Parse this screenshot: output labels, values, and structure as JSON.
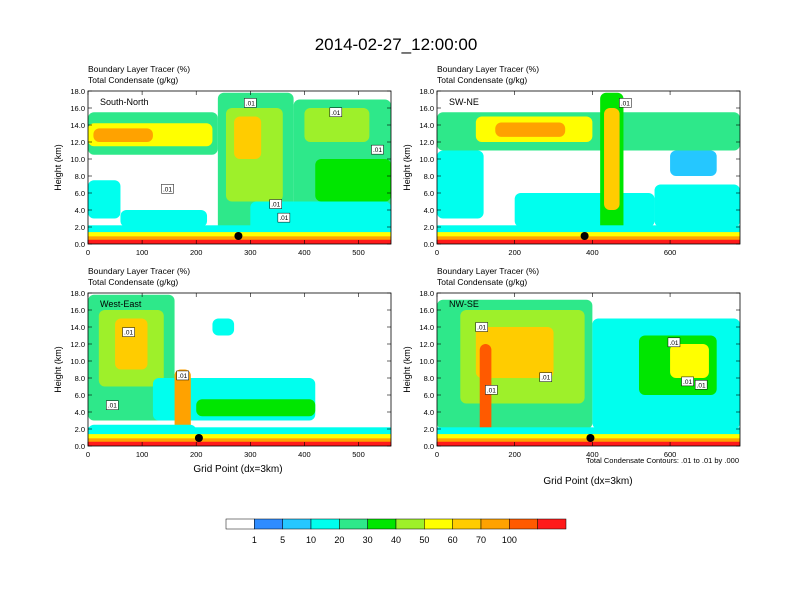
{
  "figure": {
    "title": "2014-02-27_12:00:00",
    "x_axis_label": "Grid Point (dx=3km)",
    "y_axis_label": "Height (km)",
    "contour_note": "Total Condensate Contours: .01 to .01 by .000"
  },
  "colorbar": {
    "levels": [
      "1",
      "5",
      "10",
      "20",
      "30",
      "40",
      "50",
      "60",
      "70",
      "100"
    ],
    "colors": [
      "#ffffff",
      "#2f8cff",
      "#25c7ff",
      "#00ffee",
      "#2ee88a",
      "#00e600",
      "#9ef02a",
      "#ffff00",
      "#ffcc00",
      "#ffa200",
      "#ff5a00",
      "#ff1a1a"
    ]
  },
  "chart_data": [
    {
      "type": "heatmap",
      "name": "South-North",
      "label": "South-North",
      "subtitle_1": "Boundary Layer Tracer    (%)",
      "subtitle_2": "Total Condensate    (g/kg)",
      "xlim": [
        0,
        560
      ],
      "ylim": [
        0,
        18
      ],
      "x_ticks": [
        "0",
        "100",
        "200",
        "300",
        "400",
        "500"
      ],
      "y_ticks": [
        "0.0",
        "2.0",
        "4.0",
        "6.0",
        "8.0",
        "10.0",
        "12.0",
        "14.0",
        "16.0",
        "18.0"
      ],
      "marker_x": 278,
      "contour_labels": [
        {
          "text": ".01",
          "x": 300,
          "y": 16.6
        },
        {
          "text": ".01",
          "x": 458,
          "y": 15.5
        },
        {
          "text": ".01",
          "x": 535,
          "y": 11.1
        },
        {
          "text": ".01",
          "x": 147,
          "y": 6.5
        },
        {
          "text": ".01",
          "x": 347,
          "y": 4.7
        },
        {
          "text": ".01",
          "x": 362,
          "y": 3.1
        }
      ],
      "cloud_regions": [
        {
          "x": 0,
          "x2": 240,
          "y": 10.5,
          "y2": 15.5,
          "level": 4
        },
        {
          "x": 0,
          "x2": 230,
          "y": 11.5,
          "y2": 14.2,
          "level": 7
        },
        {
          "x": 10,
          "x2": 120,
          "y": 12,
          "y2": 13.6,
          "level": 9
        },
        {
          "x": 0,
          "x2": 60,
          "y": 3,
          "y2": 7.5,
          "level": 3
        },
        {
          "x": 60,
          "x2": 220,
          "y": 2,
          "y2": 4,
          "level": 3
        },
        {
          "x": 240,
          "x2": 380,
          "y": 0.5,
          "y2": 17.8,
          "level": 4
        },
        {
          "x": 255,
          "x2": 360,
          "y": 5,
          "y2": 16,
          "level": 6
        },
        {
          "x": 270,
          "x2": 320,
          "y": 10,
          "y2": 15,
          "level": 8
        },
        {
          "x": 380,
          "x2": 560,
          "y": 3,
          "y2": 17,
          "level": 4
        },
        {
          "x": 400,
          "x2": 520,
          "y": 12,
          "y2": 16,
          "level": 6
        },
        {
          "x": 300,
          "x2": 560,
          "y": 0.5,
          "y2": 5,
          "level": 3
        },
        {
          "x": 420,
          "x2": 560,
          "y": 5,
          "y2": 10,
          "level": 5
        }
      ]
    },
    {
      "type": "heatmap",
      "name": "SW-NE",
      "label": "SW-NE",
      "subtitle_1": "Boundary Layer Tracer    (%)",
      "subtitle_2": "Total Condensate    (g/kg)",
      "xlim": [
        0,
        780
      ],
      "ylim": [
        0,
        18
      ],
      "x_ticks": [
        "0",
        "200",
        "400",
        "600"
      ],
      "y_ticks": [
        "0.0",
        "2.0",
        "4.0",
        "6.0",
        "8.0",
        "10.0",
        "12.0",
        "14.0",
        "16.0",
        "18.0"
      ],
      "marker_x": 380,
      "contour_labels": [
        {
          "text": ".01",
          "x": 485,
          "y": 16.6
        }
      ],
      "cloud_regions": [
        {
          "x": 0,
          "x2": 780,
          "y": 11,
          "y2": 15.5,
          "level": 4
        },
        {
          "x": 100,
          "x2": 400,
          "y": 12,
          "y2": 15,
          "level": 7
        },
        {
          "x": 150,
          "x2": 330,
          "y": 12.6,
          "y2": 14.3,
          "level": 9
        },
        {
          "x": 0,
          "x2": 120,
          "y": 3,
          "y2": 11,
          "level": 3
        },
        {
          "x": 200,
          "x2": 560,
          "y": 2,
          "y2": 6,
          "level": 3
        },
        {
          "x": 420,
          "x2": 480,
          "y": 0.5,
          "y2": 17.8,
          "level": 5
        },
        {
          "x": 430,
          "x2": 470,
          "y": 4,
          "y2": 16,
          "level": 8
        },
        {
          "x": 560,
          "x2": 780,
          "y": 2,
          "y2": 7,
          "level": 3
        },
        {
          "x": 600,
          "x2": 720,
          "y": 8,
          "y2": 11,
          "level": 2
        }
      ]
    },
    {
      "type": "heatmap",
      "name": "West-East",
      "label": "West-East",
      "subtitle_1": "Boundary Layer Tracer    (%)",
      "subtitle_2": "Total Condensate    (g/kg)",
      "xlim": [
        0,
        560
      ],
      "ylim": [
        0,
        18
      ],
      "x_ticks": [
        "0",
        "100",
        "200",
        "300",
        "400",
        "500"
      ],
      "y_ticks": [
        "0.0",
        "2.0",
        "4.0",
        "6.0",
        "8.0",
        "10.0",
        "12.0",
        "14.0",
        "16.0",
        "18.0"
      ],
      "marker_x": 205,
      "contour_labels": [
        {
          "text": ".01",
          "x": 75,
          "y": 13.4
        },
        {
          "text": ".01",
          "x": 175,
          "y": 8.3
        },
        {
          "text": ".01",
          "x": 45,
          "y": 4.8
        }
      ],
      "cloud_regions": [
        {
          "x": 0,
          "x2": 160,
          "y": 3,
          "y2": 17.8,
          "level": 4
        },
        {
          "x": 20,
          "x2": 140,
          "y": 7,
          "y2": 16,
          "level": 6
        },
        {
          "x": 50,
          "x2": 110,
          "y": 9,
          "y2": 15,
          "level": 8
        },
        {
          "x": 120,
          "x2": 420,
          "y": 3,
          "y2": 8,
          "level": 3
        },
        {
          "x": 200,
          "x2": 420,
          "y": 3.5,
          "y2": 5.5,
          "level": 5
        },
        {
          "x": 160,
          "x2": 190,
          "y": 0.5,
          "y2": 9,
          "level": 9
        },
        {
          "x": 0,
          "x2": 200,
          "y": 0.5,
          "y2": 2.5,
          "level": 3
        },
        {
          "x": 230,
          "x2": 270,
          "y": 13,
          "y2": 15,
          "level": 3
        }
      ]
    },
    {
      "type": "heatmap",
      "name": "NW-SE",
      "label": "NW-SE",
      "subtitle_1": "Boundary Layer Tracer    (%)",
      "subtitle_2": "Total Condensate    (g/kg)",
      "xlim": [
        0,
        780
      ],
      "ylim": [
        0,
        18
      ],
      "x_ticks": [
        "0",
        "200",
        "400",
        "600"
      ],
      "y_ticks": [
        "0.0",
        "2.0",
        "4.0",
        "6.0",
        "8.0",
        "10.0",
        "12.0",
        "14.0",
        "16.0",
        "18.0"
      ],
      "marker_x": 395,
      "contour_labels": [
        {
          "text": ".01",
          "x": 115,
          "y": 14.0
        },
        {
          "text": ".01",
          "x": 280,
          "y": 8.1
        },
        {
          "text": ".01",
          "x": 140,
          "y": 6.6
        },
        {
          "text": ".01",
          "x": 610,
          "y": 12.2
        },
        {
          "text": ".01",
          "x": 645,
          "y": 7.6
        },
        {
          "text": ".01",
          "x": 680,
          "y": 7.2
        }
      ],
      "cloud_regions": [
        {
          "x": 0,
          "x2": 400,
          "y": 2,
          "y2": 17.2,
          "level": 4
        },
        {
          "x": 60,
          "x2": 380,
          "y": 5,
          "y2": 16,
          "level": 6
        },
        {
          "x": 100,
          "x2": 300,
          "y": 8,
          "y2": 14,
          "level": 8
        },
        {
          "x": 110,
          "x2": 140,
          "y": 0.5,
          "y2": 12,
          "level": 10
        },
        {
          "x": 400,
          "x2": 780,
          "y": 2,
          "y2": 15,
          "level": 3
        },
        {
          "x": 520,
          "x2": 720,
          "y": 6,
          "y2": 13,
          "level": 5
        },
        {
          "x": 600,
          "x2": 700,
          "y": 8,
          "y2": 12,
          "level": 7
        }
      ]
    }
  ]
}
